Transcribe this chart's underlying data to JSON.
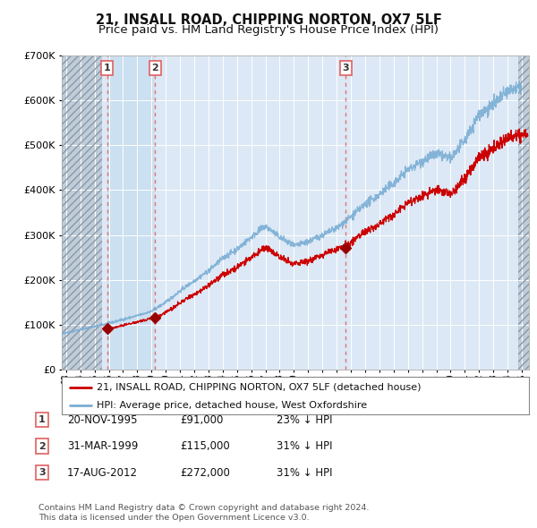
{
  "title": "21, INSALL ROAD, CHIPPING NORTON, OX7 5LF",
  "subtitle": "Price paid vs. HM Land Registry's House Price Index (HPI)",
  "title_fontsize": 10.5,
  "subtitle_fontsize": 9.5,
  "ylim": [
    0,
    700000
  ],
  "yticks": [
    0,
    100000,
    200000,
    300000,
    400000,
    500000,
    600000,
    700000
  ],
  "ytick_labels": [
    "£0",
    "£100K",
    "£200K",
    "£300K",
    "£400K",
    "£500K",
    "£600K",
    "£700K"
  ],
  "xlim_start": 1992.7,
  "xlim_end": 2025.5,
  "background_color": "#ffffff",
  "plot_bg_color": "#dce8f5",
  "grid_color": "#ffffff",
  "hpi_color": "#7aaed4",
  "price_color": "#cc0000",
  "sale_marker_color": "#990000",
  "vline_color": "#e06060",
  "sale_band_color": "#c0d8ee",
  "hatch_color": "#b8c8d8",
  "sales": [
    {
      "date_num": 1995.88,
      "price": 91000,
      "label": "1",
      "date_str": "20-NOV-1995",
      "price_str": "£91,000",
      "hpi_str": "23% ↓ HPI"
    },
    {
      "date_num": 1999.25,
      "price": 115000,
      "label": "2",
      "date_str": "31-MAR-1999",
      "price_str": "£115,000",
      "hpi_str": "31% ↓ HPI"
    },
    {
      "date_num": 2012.63,
      "price": 272000,
      "label": "3",
      "date_str": "17-AUG-2012",
      "price_str": "£272,000",
      "hpi_str": "31% ↓ HPI"
    }
  ],
  "legend_line1": "21, INSALL ROAD, CHIPPING NORTON, OX7 5LF (detached house)",
  "legend_line2": "HPI: Average price, detached house, West Oxfordshire",
  "footer1": "Contains HM Land Registry data © Crown copyright and database right 2024.",
  "footer2": "This data is licensed under the Open Government Licence v3.0.",
  "hatch_end_year": 1995.5,
  "hatch_start_year2": 2024.75,
  "hpi_base_years": [
    1992,
    1993,
    1994,
    1995,
    1996,
    1997,
    1998,
    1999,
    2000,
    2001,
    2002,
    2003,
    2004,
    2005,
    2006,
    2007,
    2008,
    2009,
    2010,
    2011,
    2012,
    2013,
    2014,
    2015,
    2016,
    2017,
    2018,
    2019,
    2020,
    2021,
    2022,
    2023,
    2024,
    2025
  ],
  "hpi_base_vals": [
    75000,
    82000,
    89000,
    96000,
    103000,
    112000,
    120000,
    130000,
    150000,
    175000,
    198000,
    220000,
    248000,
    268000,
    295000,
    320000,
    295000,
    275000,
    285000,
    300000,
    315000,
    340000,
    368000,
    390000,
    415000,
    445000,
    465000,
    480000,
    470000,
    510000,
    570000,
    590000,
    620000,
    630000
  ]
}
